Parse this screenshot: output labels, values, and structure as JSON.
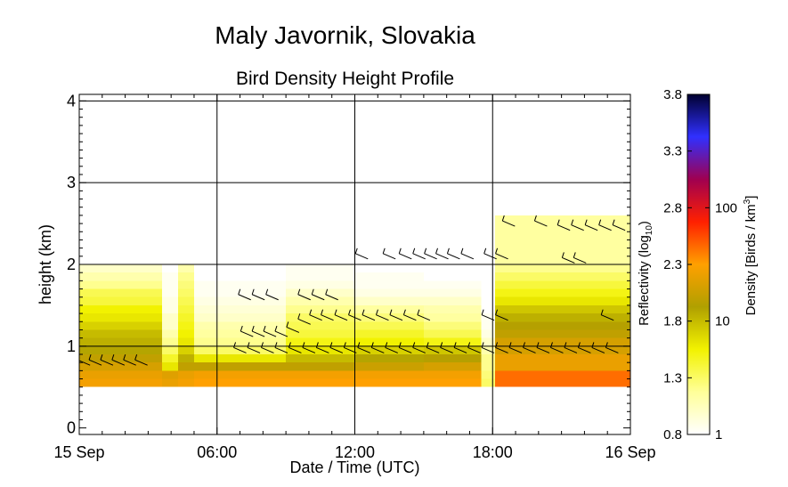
{
  "chart_data": {
    "type": "heatmap",
    "title": "Maly Javornik, Slovakia",
    "subtitle": "Bird Density Height Profile",
    "xlabel": "Date / Time (UTC)",
    "ylabel": "height (km)",
    "x_ticks": [
      "15 Sep",
      "06:00",
      "12:00",
      "18:00",
      "16 Sep"
    ],
    "x_tick_hours": [
      0,
      6,
      12,
      18,
      24
    ],
    "xlim_hours": [
      0,
      24
    ],
    "y_ticks": [
      0,
      1,
      2,
      3,
      4
    ],
    "ylim_km": [
      -0.08,
      4.08
    ],
    "grid": true,
    "colorbar": {
      "left_label": "Reflectivity (log",
      "left_label_subscript": "10",
      "left_label_suffix": ")",
      "left_ticks": [
        0.8,
        1.3,
        1.8,
        2.3,
        2.8,
        3.3,
        3.8
      ],
      "right_label": "Density [Birds / km",
      "right_label_superscript": "3",
      "right_label_suffix": "]",
      "right_ticks": [
        "1",
        "10",
        "100"
      ],
      "right_tick_values": [
        1,
        10,
        100
      ],
      "range": [
        0.8,
        3.8
      ],
      "colors": [
        "#ffffff",
        "#ffff99",
        "#f2f200",
        "#b0a000",
        "#ffa000",
        "#ff2000",
        "#a00050",
        "#3030ff",
        "#000030"
      ]
    },
    "density_profile": {
      "height_bins_km": [
        0.5,
        0.6,
        0.7,
        0.8,
        0.9,
        1.0,
        1.1,
        1.2,
        1.3,
        1.4,
        1.5,
        1.6,
        1.7,
        1.8,
        1.9
      ],
      "time_blocks": [
        {
          "start_h": 0.0,
          "end_h": 3.6,
          "log10_reflectivity": [
            2.25,
            2.2,
            2.1,
            2.0,
            1.9,
            1.85,
            1.8,
            1.7,
            1.6,
            1.55,
            1.4,
            1.35,
            1.2,
            1.1,
            1.0
          ]
        },
        {
          "start_h": 3.6,
          "end_h": 4.3,
          "log10_reflectivity": [
            2.2,
            2.15,
            1.6,
            1.45,
            1.3,
            1.2,
            1.1,
            1.0,
            1.0,
            0.9,
            0.9,
            0.85,
            0.85,
            0.85,
            0.8
          ]
        },
        {
          "start_h": 4.3,
          "end_h": 5.0,
          "log10_reflectivity": [
            2.25,
            2.2,
            2.0,
            1.85,
            1.7,
            1.6,
            1.55,
            1.5,
            1.45,
            1.4,
            1.35,
            1.3,
            1.25,
            1.2,
            1.1
          ]
        },
        {
          "start_h": 5.0,
          "end_h": 9.0,
          "log10_reflectivity": [
            2.3,
            2.25,
            2.0,
            1.6,
            1.3,
            1.2,
            1.15,
            1.1,
            1.0,
            0.95,
            0.9,
            0.85,
            0.85,
            0.8,
            0.8
          ]
        },
        {
          "start_h": 9.0,
          "end_h": 12.0,
          "log10_reflectivity": [
            2.3,
            2.25,
            2.0,
            1.8,
            1.6,
            1.5,
            1.4,
            1.35,
            1.3,
            1.2,
            1.1,
            1.0,
            0.9,
            0.85,
            0.85
          ]
        },
        {
          "start_h": 12.0,
          "end_h": 15.0,
          "log10_reflectivity": [
            2.3,
            2.25,
            2.05,
            1.9,
            1.7,
            1.55,
            1.45,
            1.35,
            1.25,
            1.15,
            1.0,
            0.9,
            0.85,
            0.85,
            0.8
          ]
        },
        {
          "start_h": 15.0,
          "end_h": 17.5,
          "log10_reflectivity": [
            2.3,
            2.25,
            2.1,
            1.95,
            1.75,
            1.5,
            1.35,
            1.25,
            1.15,
            1.1,
            1.0,
            0.9,
            0.85,
            0.8,
            0.8
          ]
        },
        {
          "start_h": 17.5,
          "end_h": 18.1,
          "log10_reflectivity": [
            1.3,
            1.25,
            1.2,
            1.2,
            1.1,
            1.0,
            0.9,
            0.85,
            0.85,
            0.8,
            0.8,
            0.8,
            0.8,
            0.8,
            0.8
          ]
        },
        {
          "start_h": 18.1,
          "end_h": 24.0,
          "log10_reflectivity": [
            2.45,
            2.45,
            2.2,
            2.2,
            2.1,
            2.1,
            2.0,
            1.95,
            1.85,
            1.75,
            1.6,
            1.5,
            1.4,
            1.3,
            1.2
          ]
        }
      ]
    },
    "upper_layer": [
      {
        "start_h": 18.1,
        "end_h": 24.0,
        "bottom_km": 2.0,
        "top_km": 2.6,
        "log10_reflectivity": 1.15
      }
    ],
    "wind_barbs": [
      {
        "h": 0.2,
        "km": 0.8
      },
      {
        "h": 0.7,
        "km": 0.8
      },
      {
        "h": 1.2,
        "km": 0.8
      },
      {
        "h": 1.7,
        "km": 0.8
      },
      {
        "h": 2.2,
        "km": 0.8
      },
      {
        "h": 2.7,
        "km": 0.8
      },
      {
        "h": 7.2,
        "km": 1.6
      },
      {
        "h": 7.8,
        "km": 1.6
      },
      {
        "h": 8.4,
        "km": 1.6
      },
      {
        "h": 9.8,
        "km": 1.6
      },
      {
        "h": 10.4,
        "km": 1.6
      },
      {
        "h": 11.0,
        "km": 1.6
      },
      {
        "h": 7.3,
        "km": 1.15
      },
      {
        "h": 7.8,
        "km": 1.15
      },
      {
        "h": 8.3,
        "km": 1.15
      },
      {
        "h": 8.8,
        "km": 1.15
      },
      {
        "h": 9.3,
        "km": 1.2
      },
      {
        "h": 9.8,
        "km": 1.3
      },
      {
        "h": 10.3,
        "km": 1.35
      },
      {
        "h": 10.8,
        "km": 1.35
      },
      {
        "h": 11.4,
        "km": 1.35
      },
      {
        "h": 12.0,
        "km": 1.35
      },
      {
        "h": 12.6,
        "km": 1.35
      },
      {
        "h": 13.2,
        "km": 1.35
      },
      {
        "h": 13.8,
        "km": 1.35
      },
      {
        "h": 14.4,
        "km": 1.35
      },
      {
        "h": 7.0,
        "km": 0.95
      },
      {
        "h": 7.6,
        "km": 0.95
      },
      {
        "h": 8.2,
        "km": 0.95
      },
      {
        "h": 8.8,
        "km": 0.95
      },
      {
        "h": 9.4,
        "km": 0.95
      },
      {
        "h": 10.0,
        "km": 0.95
      },
      {
        "h": 10.6,
        "km": 0.95
      },
      {
        "h": 11.2,
        "km": 0.95
      },
      {
        "h": 11.8,
        "km": 0.95
      },
      {
        "h": 12.4,
        "km": 0.95
      },
      {
        "h": 13.0,
        "km": 0.95
      },
      {
        "h": 13.6,
        "km": 0.95
      },
      {
        "h": 14.2,
        "km": 0.95
      },
      {
        "h": 14.8,
        "km": 0.95
      },
      {
        "h": 15.4,
        "km": 0.95
      },
      {
        "h": 16.0,
        "km": 0.95
      },
      {
        "h": 16.6,
        "km": 0.95
      },
      {
        "h": 17.2,
        "km": 0.95
      },
      {
        "h": 17.8,
        "km": 0.95
      },
      {
        "h": 18.4,
        "km": 0.95
      },
      {
        "h": 19.0,
        "km": 0.95
      },
      {
        "h": 19.6,
        "km": 0.95
      },
      {
        "h": 20.2,
        "km": 0.95
      },
      {
        "h": 20.8,
        "km": 0.95
      },
      {
        "h": 21.4,
        "km": 0.95
      },
      {
        "h": 22.0,
        "km": 0.95
      },
      {
        "h": 22.6,
        "km": 0.95
      },
      {
        "h": 23.2,
        "km": 0.95
      },
      {
        "h": 15.0,
        "km": 1.35
      },
      {
        "h": 17.8,
        "km": 1.35
      },
      {
        "h": 18.4,
        "km": 1.35
      },
      {
        "h": 23.0,
        "km": 1.35
      },
      {
        "h": 12.3,
        "km": 2.1
      },
      {
        "h": 13.5,
        "km": 2.1
      },
      {
        "h": 14.2,
        "km": 2.1
      },
      {
        "h": 14.8,
        "km": 2.1
      },
      {
        "h": 15.3,
        "km": 2.1
      },
      {
        "h": 15.8,
        "km": 2.1
      },
      {
        "h": 16.3,
        "km": 2.1
      },
      {
        "h": 16.9,
        "km": 2.1
      },
      {
        "h": 17.9,
        "km": 2.1
      },
      {
        "h": 18.4,
        "km": 2.1
      },
      {
        "h": 21.3,
        "km": 2.05
      },
      {
        "h": 21.8,
        "km": 2.05
      },
      {
        "h": 18.7,
        "km": 2.5
      },
      {
        "h": 20.1,
        "km": 2.5
      },
      {
        "h": 21.1,
        "km": 2.45
      },
      {
        "h": 21.7,
        "km": 2.45
      },
      {
        "h": 22.3,
        "km": 2.45
      },
      {
        "h": 22.9,
        "km": 2.45
      },
      {
        "h": 23.5,
        "km": 2.45
      }
    ]
  }
}
